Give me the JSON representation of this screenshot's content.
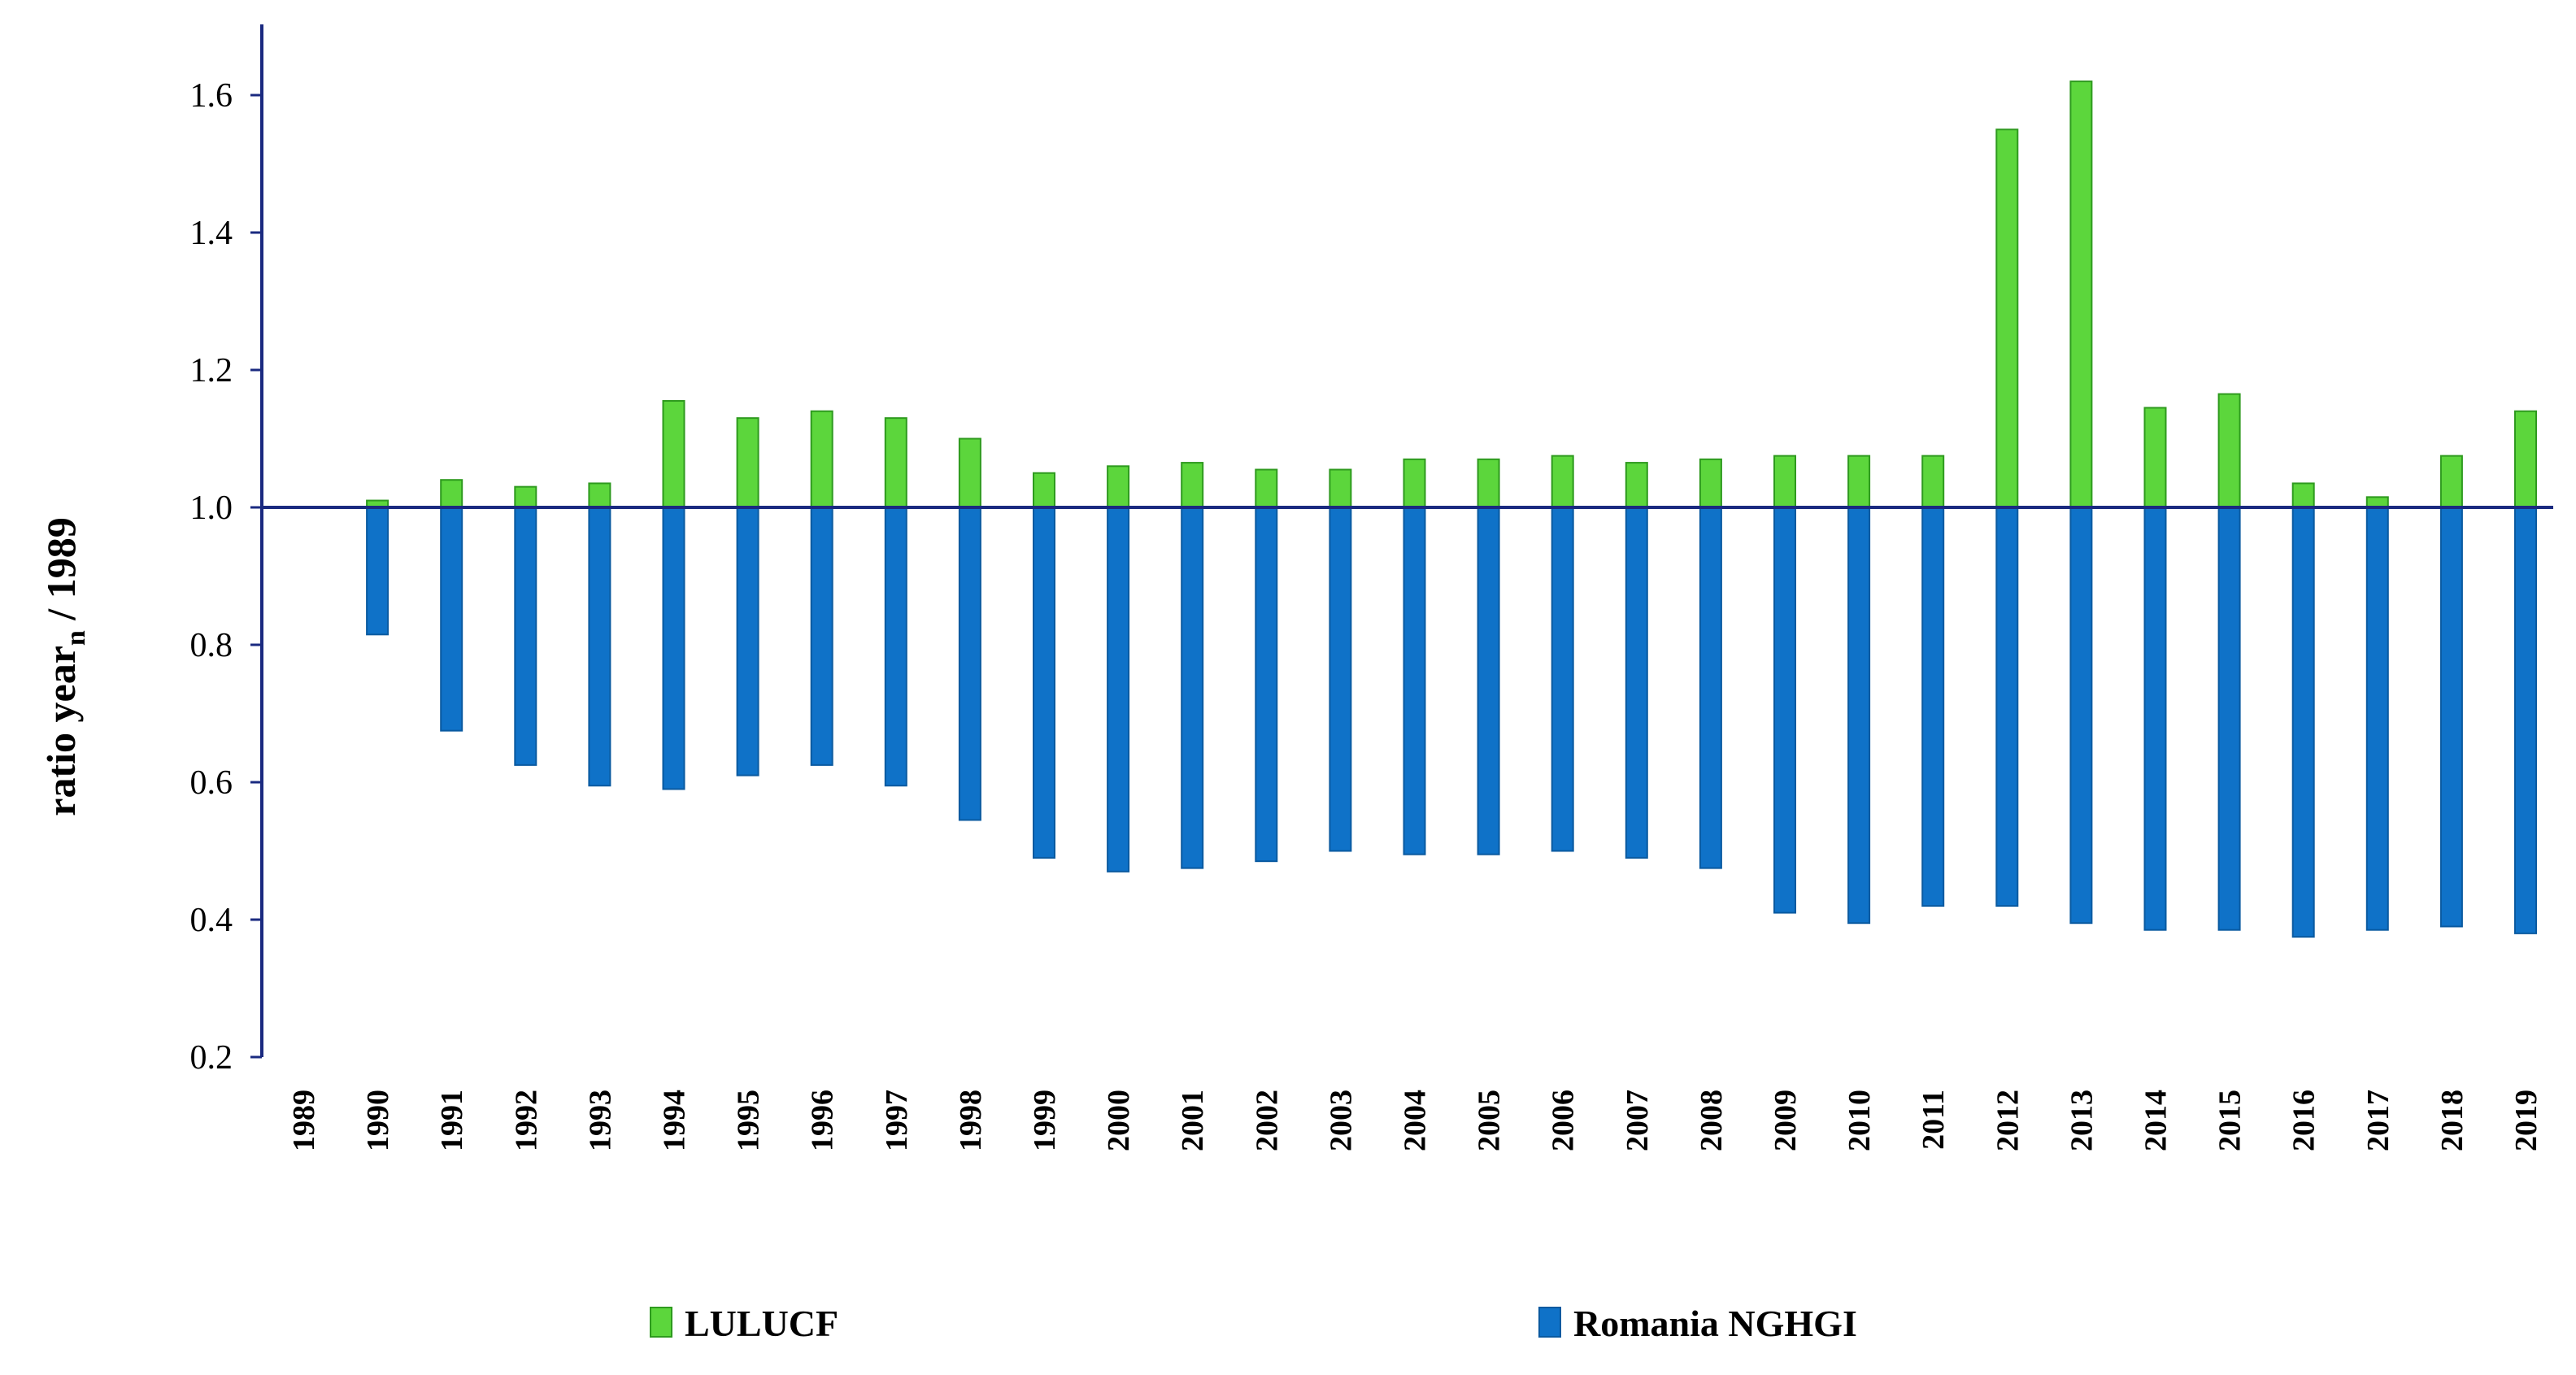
{
  "chart_data": {
    "type": "bar",
    "title": "",
    "xlabel": "",
    "ylabel": {
      "main": "ratio year",
      "subscript": "n",
      "suffix": " / 1989"
    },
    "ylim": [
      0.2,
      1.7
    ],
    "baseline": 1.0,
    "yticks": [
      "0.2",
      "0.4",
      "0.6",
      "0.8",
      "1.0",
      "1.2",
      "1.4",
      "1.6"
    ],
    "categories": [
      "1989",
      "1990",
      "1991",
      "1992",
      "1993",
      "1994",
      "1995",
      "1996",
      "1997",
      "1998",
      "1999",
      "2000",
      "2001",
      "2002",
      "2003",
      "2004",
      "2005",
      "2006",
      "2007",
      "2008",
      "2009",
      "2010",
      "2011",
      "2012",
      "2013",
      "2014",
      "2015",
      "2016",
      "2017",
      "2018",
      "2019"
    ],
    "series": [
      {
        "name": "LULUCF",
        "color": "#5cd63c",
        "edge": "#2e9a1e",
        "values": [
          null,
          1.01,
          1.04,
          1.03,
          1.035,
          1.155,
          1.13,
          1.14,
          1.13,
          1.1,
          1.05,
          1.06,
          1.065,
          1.055,
          1.055,
          1.07,
          1.07,
          1.075,
          1.065,
          1.07,
          1.075,
          1.075,
          1.075,
          1.55,
          1.62,
          1.145,
          1.165,
          1.035,
          1.015,
          1.075,
          1.14
        ]
      },
      {
        "name": "Romania NGHGI",
        "color": "#0f72c8",
        "edge": "#0a5aa0",
        "values": [
          null,
          0.815,
          0.675,
          0.625,
          0.595,
          0.59,
          0.61,
          0.625,
          0.595,
          0.545,
          0.49,
          0.47,
          0.475,
          0.485,
          0.5,
          0.495,
          0.495,
          0.5,
          0.49,
          0.475,
          0.41,
          0.395,
          0.42,
          0.42,
          0.395,
          0.385,
          0.385,
          0.375,
          0.385,
          0.39,
          0.38
        ]
      }
    ],
    "legend_position": "bottom",
    "axis_color": "#1a2a80"
  }
}
